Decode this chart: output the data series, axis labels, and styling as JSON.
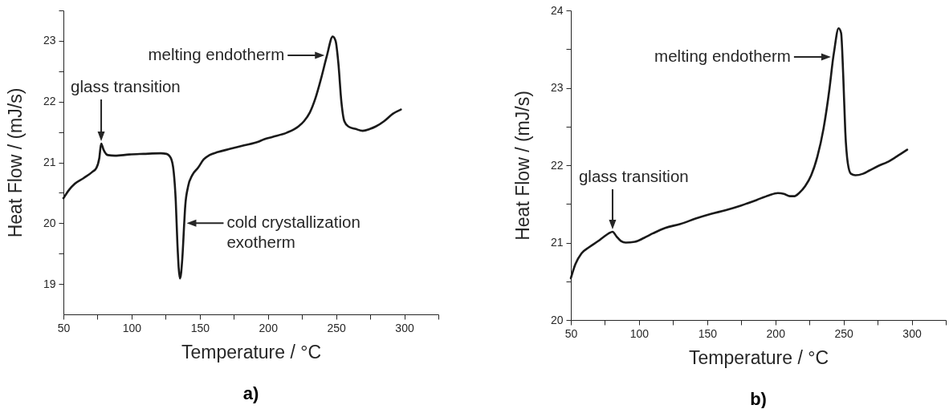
{
  "chart_data": [
    {
      "type": "line",
      "title": "a)",
      "xlabel": "Temperature / °C",
      "ylabel": "Heat Flow / (mJ/s)",
      "x": [
        50,
        54.2,
        58.4,
        64.7,
        71,
        74.2,
        76.3,
        77.7,
        79.4,
        82.6,
        87.8,
        98.3,
        108.8,
        121.4,
        125.6,
        128.8,
        130.9,
        132.4,
        133.6,
        135.5,
        137.2,
        138.6,
        139.3,
        141.4,
        144.5,
        148.7,
        152.9,
        157.1,
        163.4,
        171.8,
        182.4,
        192.9,
        197.1,
        203.4,
        213.9,
        222.3,
        226.5,
        230.7,
        234.9,
        239.1,
        243.3,
        247.5,
        249.6,
        251.7,
        253.8,
        256,
        259,
        264.3,
        269.5,
        274.8,
        279,
        285.3,
        291.6,
        297.5
      ],
      "series": [
        {
          "color": "#1a1a1a",
          "values": [
            20.41,
            20.55,
            20.65,
            20.74,
            20.84,
            20.91,
            21.07,
            21.31,
            21.21,
            21.12,
            21.11,
            21.13,
            21.14,
            21.15,
            21.14,
            21.07,
            20.84,
            20.36,
            19.66,
            19.09,
            19.42,
            20,
            20.27,
            20.6,
            20.79,
            20.91,
            21.05,
            21.12,
            21.17,
            21.22,
            21.28,
            21.34,
            21.38,
            21.42,
            21.49,
            21.59,
            21.68,
            21.82,
            22.06,
            22.39,
            22.76,
            23.07,
            23,
            22.62,
            22.01,
            21.68,
            21.59,
            21.55,
            21.52,
            21.55,
            21.59,
            21.68,
            21.8,
            21.87
          ]
        }
      ],
      "xlim": [
        50,
        325
      ],
      "xticks": [
        50,
        {
          "value": 75,
          "label": null
        },
        100,
        {
          "value": 125,
          "label": null
        },
        150,
        {
          "value": 175,
          "label": null
        },
        200,
        {
          "value": 225,
          "label": null
        },
        250,
        {
          "value": 275,
          "label": null
        },
        300,
        {
          "value": 325,
          "label": null
        }
      ],
      "ylim": [
        18.5,
        23.5
      ],
      "yticks": [
        19,
        {
          "value": 19.5,
          "label": null
        },
        20,
        {
          "value": 20.5,
          "label": null
        },
        21,
        {
          "value": 21.5,
          "label": null
        },
        22,
        {
          "value": 22.5,
          "label": null
        },
        23,
        {
          "value": 23.5,
          "label": null
        }
      ],
      "annotations": [
        {
          "text": "melting endotherm",
          "x": 243.3,
          "y": 22.76
        },
        {
          "text": "glass transition",
          "x": 77.7,
          "y": 21.31
        },
        {
          "text": "cold crystallization\nexotherm",
          "x": 138.6,
          "y": 20
        }
      ]
    },
    {
      "type": "line",
      "title": "b)",
      "xlabel": "Temperature / °C",
      "ylabel": "Heat Flow / (mJ/s)",
      "x": [
        50,
        53.3,
        57.8,
        63.4,
        70.1,
        74.6,
        77.9,
        80.6,
        83.5,
        86.8,
        90.2,
        96.9,
        103.6,
        110.3,
        119.2,
        130.4,
        141.5,
        152.7,
        163.8,
        175,
        186.2,
        195.1,
        201.8,
        206.3,
        210.7,
        214.1,
        217.4,
        221.9,
        226.3,
        230.8,
        235.3,
        239.7,
        242.5,
        243.1,
        246.4,
        248.2,
        249.8,
        251.3,
        253.1,
        255.4,
        258.7,
        264.3,
        268.8,
        275.4,
        282.1,
        288.8,
        296.7
      ],
      "series": [
        {
          "color": "#1a1a1a",
          "values": [
            20.54,
            20.72,
            20.86,
            20.94,
            21.02,
            21.08,
            21.12,
            21.14,
            21.08,
            21.02,
            21,
            21.01,
            21.06,
            21.12,
            21.19,
            21.24,
            21.31,
            21.37,
            21.42,
            21.48,
            21.55,
            21.61,
            21.64,
            21.63,
            21.6,
            21.6,
            21.64,
            21.73,
            21.87,
            22.11,
            22.47,
            22.99,
            23.4,
            23.47,
            23.77,
            23.71,
            23.15,
            22.43,
            22.03,
            21.89,
            21.87,
            21.89,
            21.93,
            21.99,
            22.04,
            22.11,
            22.2
          ]
        }
      ],
      "xlim": [
        50,
        325
      ],
      "xticks": [
        50,
        {
          "value": 75,
          "label": null
        },
        100,
        {
          "value": 125,
          "label": null
        },
        150,
        {
          "value": 175,
          "label": null
        },
        200,
        {
          "value": 225,
          "label": null
        },
        250,
        {
          "value": 275,
          "label": null
        },
        300,
        {
          "value": 325,
          "label": null
        }
      ],
      "ylim": [
        20,
        24
      ],
      "yticks": [
        20,
        {
          "value": 20.5,
          "label": null
        },
        21,
        {
          "value": 21.5,
          "label": null
        },
        22,
        {
          "value": 22.5,
          "label": null
        },
        23,
        {
          "value": 23.5,
          "label": null
        },
        24
      ],
      "annotations": [
        {
          "text": "melting endotherm",
          "x": 242.5,
          "y": 23.4
        },
        {
          "text": "glass transition",
          "x": 80.6,
          "y": 21.14
        }
      ]
    }
  ]
}
